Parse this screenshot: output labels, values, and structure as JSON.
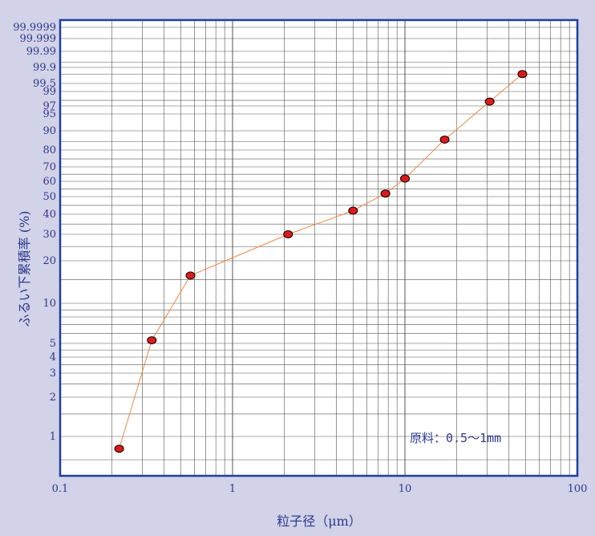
{
  "chart_data": {
    "type": "scatter",
    "xscale": "log",
    "yscale": "probability",
    "xlim": [
      0.1,
      100
    ],
    "xlabel": "粒子径（μm）",
    "ylabel": "ふるい下累積率 (%)",
    "annotation": "原料：0.5～1mm",
    "grid": true,
    "line_color": "#ee8844",
    "marker_color": "#dd1a1a",
    "axis_color": "#1f3f9f",
    "x_ticks": [
      {
        "value": 0.1,
        "label": "0.1"
      },
      {
        "value": 1,
        "label": "1"
      },
      {
        "value": 10,
        "label": "10"
      },
      {
        "value": 100,
        "label": "100"
      }
    ],
    "y_ticks": [
      {
        "value": 1,
        "label": "1"
      },
      {
        "value": 2,
        "label": "2"
      },
      {
        "value": 3,
        "label": "3"
      },
      {
        "value": 4,
        "label": "4"
      },
      {
        "value": 5,
        "label": "5"
      },
      {
        "value": 10,
        "label": "10"
      },
      {
        "value": 20,
        "label": "20"
      },
      {
        "value": 30,
        "label": "30"
      },
      {
        "value": 40,
        "label": "40"
      },
      {
        "value": 50,
        "label": "50"
      },
      {
        "value": 60,
        "label": "60"
      },
      {
        "value": 70,
        "label": "70"
      },
      {
        "value": 80,
        "label": "80"
      },
      {
        "value": 90,
        "label": "90"
      },
      {
        "value": 95,
        "label": "95"
      },
      {
        "value": 97,
        "label": "97"
      },
      {
        "value": 99,
        "label": "99"
      },
      {
        "value": 99.5,
        "label": "99.5"
      },
      {
        "value": 99.9,
        "label": "99.9"
      },
      {
        "value": 99.99,
        "label": "99.99"
      },
      {
        "value": 99.999,
        "label": "99.999"
      },
      {
        "value": 99.9999,
        "label": "99.9999"
      }
    ],
    "series": [
      {
        "x": [
          0.22,
          0.34,
          0.57,
          2.1,
          5.0,
          7.7,
          10.0,
          17.0,
          31.0,
          48.0
        ],
        "y": [
          0.7,
          5.3,
          16,
          30,
          42,
          52,
          62,
          86,
          97.8,
          99.8
        ]
      }
    ]
  }
}
